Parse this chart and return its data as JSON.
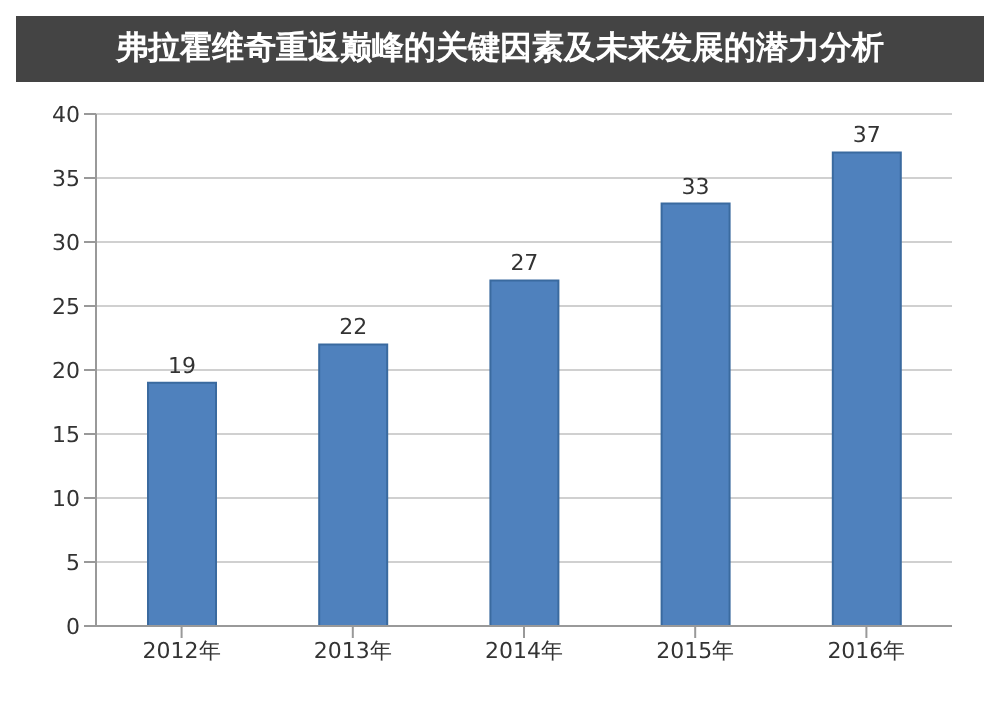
{
  "chart_data": {
    "type": "bar",
    "title": "弗拉霍维奇重返巅峰的关键因素及未来发展的潜力分析",
    "categories": [
      "2012年",
      "2013年",
      "2014年",
      "2015年",
      "2016年"
    ],
    "values": [
      19,
      22,
      27,
      33,
      37
    ],
    "color": "#4f81bd",
    "ylim": [
      0,
      40
    ],
    "yticks": [
      0,
      5,
      10,
      15,
      20,
      25,
      30,
      35,
      40
    ],
    "grid": "y",
    "data_labels": true
  }
}
